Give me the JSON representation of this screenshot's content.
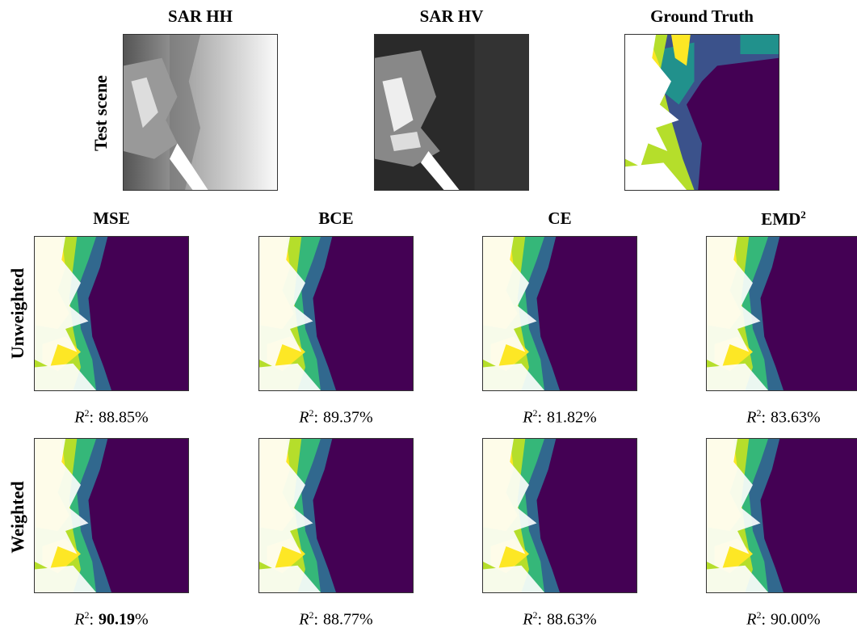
{
  "top": {
    "row_label": "Test scene",
    "panels": [
      {
        "title": "SAR HH"
      },
      {
        "title": "SAR HV"
      },
      {
        "title": "Ground Truth"
      }
    ]
  },
  "metric": {
    "symbol": "R",
    "exponent": "2",
    "separator": ":",
    "unit": "%"
  },
  "grid": {
    "columns": [
      {
        "title": "MSE"
      },
      {
        "title": "BCE"
      },
      {
        "title": "CE"
      },
      {
        "title": "EMD",
        "superscript": "2"
      }
    ],
    "rows": [
      {
        "label": "Unweighted",
        "scores": [
          "88.85",
          "89.37",
          "81.82",
          "83.63"
        ]
      },
      {
        "label": "Weighted",
        "scores": [
          "90.19",
          "88.77",
          "88.63",
          "90.00"
        ],
        "bold_index": 0
      }
    ]
  }
}
